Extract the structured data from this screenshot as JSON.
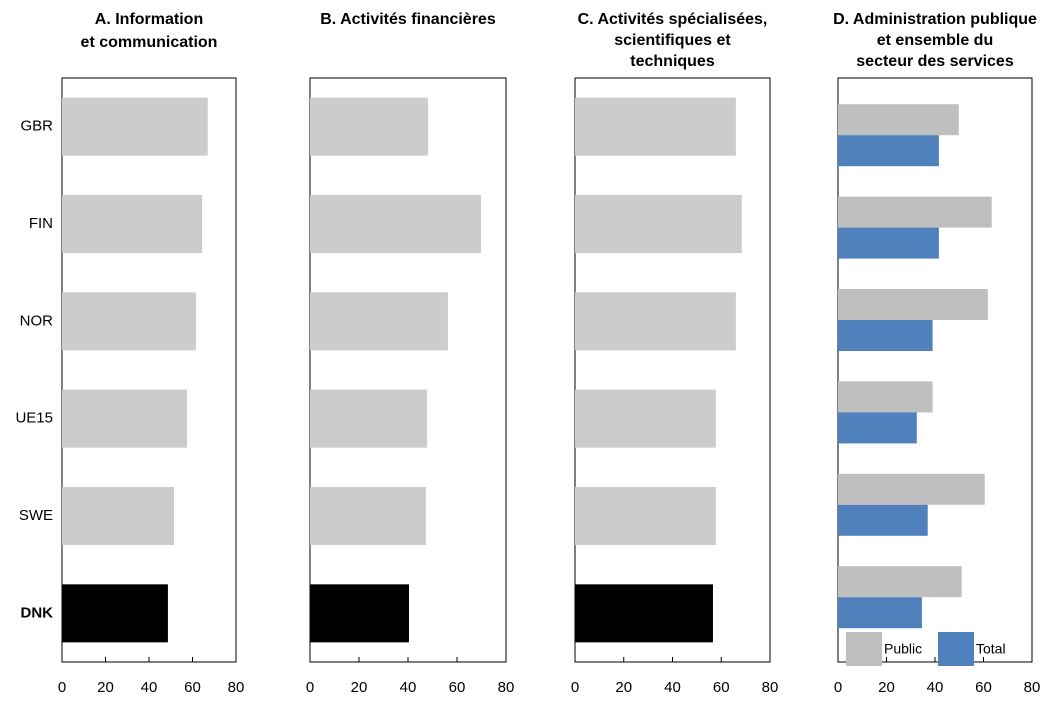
{
  "chart_data": [
    {
      "type": "bar",
      "orientation": "horizontal",
      "title": [
        "A. Information",
        "et communication"
      ],
      "categories": [
        "GBR",
        "FIN",
        "NOR",
        "UE15",
        "SWE",
        "DNK"
      ],
      "values": [
        67,
        64.4,
        61.6,
        57.5,
        51.5,
        48.7
      ],
      "colors": [
        "#cccccc",
        "#cccccc",
        "#cccccc",
        "#cccccc",
        "#cccccc",
        "#000000"
      ],
      "xlim": [
        0,
        80
      ],
      "xticks": [
        0,
        20,
        40,
        60,
        80
      ]
    },
    {
      "type": "bar",
      "orientation": "horizontal",
      "title": [
        "B. Activités financières"
      ],
      "categories": [
        null,
        null,
        null,
        null,
        null,
        null
      ],
      "values": [
        48.2,
        69.8,
        56.3,
        47.8,
        47.3,
        40.4
      ],
      "colors": [
        "#cccccc",
        "#cccccc",
        "#cccccc",
        "#cccccc",
        "#cccccc",
        "#000000"
      ],
      "xlim": [
        0,
        80
      ],
      "xticks": [
        0,
        20,
        40,
        60,
        80
      ]
    },
    {
      "type": "bar",
      "orientation": "horizontal",
      "title": [
        "C. Activités spécialisées,",
        "scientifiques et",
        "techniques"
      ],
      "categories": [
        null,
        null,
        null,
        null,
        null,
        null
      ],
      "values": [
        66,
        68.4,
        66,
        57.8,
        57.8,
        56.6
      ],
      "colors": [
        "#cccccc",
        "#cccccc",
        "#cccccc",
        "#cccccc",
        "#cccccc",
        "#000000"
      ],
      "xlim": [
        0,
        80
      ],
      "xticks": [
        0,
        20,
        40,
        60,
        80
      ]
    },
    {
      "type": "grouped-bar",
      "orientation": "horizontal",
      "title": [
        "D. Administration publique",
        "et ensemble du",
        "secteur des services"
      ],
      "categories": [
        null,
        null,
        null,
        null,
        null,
        null
      ],
      "series": [
        {
          "name": "Public",
          "color": "#bfbfbf",
          "values": [
            49.8,
            63.4,
            61.8,
            39,
            60.5,
            51
          ]
        },
        {
          "name": "Total",
          "color": "#4f81bd",
          "values": [
            41.6,
            41.6,
            39,
            32.5,
            37,
            34.6
          ]
        }
      ],
      "legend": "bottom-right",
      "xlim": [
        0,
        80
      ],
      "xticks": [
        0,
        20,
        40,
        60,
        80
      ]
    }
  ]
}
